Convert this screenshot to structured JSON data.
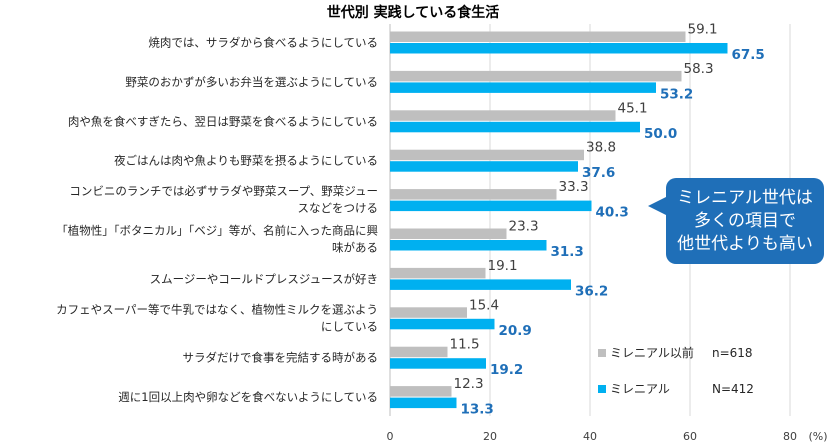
{
  "chart_data": {
    "type": "bar",
    "orientation": "horizontal",
    "title": "世代別 実践している食生活",
    "categories": [
      [
        "焼肉では、サラダから食べるようにしている"
      ],
      [
        "野菜のおかずが多いお弁当を選ぶようにしている"
      ],
      [
        "肉や魚を食べすぎたら、翌日は野菜を食べるようにしている"
      ],
      [
        "夜ごはんは肉や魚よりも野菜を摂るようにしている"
      ],
      [
        "コンビニのランチでは必ずサラダや野菜スープ、野菜ジュー",
        "スなどをつける"
      ],
      [
        "「植物性」「ボタニカル」「ベジ」等が、名前に入った商品に興",
        "味がある"
      ],
      [
        "スムージーやコールドプレスジュースが好き"
      ],
      [
        "カフェやスーパー等で牛乳ではなく、植物性ミルクを選ぶよう",
        "にしている"
      ],
      [
        "サラダだけで食事を完結する時がある"
      ],
      [
        "週に1回以上肉や卵などを食べないようにしている"
      ]
    ],
    "series": [
      {
        "name": "ミレニアル以前",
        "n": "n=618",
        "color": "#bfbfbf",
        "values": [
          59.1,
          58.3,
          45.1,
          38.8,
          33.3,
          23.3,
          19.1,
          15.4,
          11.5,
          12.3
        ]
      },
      {
        "name": "ミレニアル",
        "n": "N=412",
        "color": "#00b0f0",
        "values": [
          67.5,
          53.2,
          50.0,
          37.6,
          40.3,
          31.3,
          36.2,
          20.9,
          19.2,
          13.3
        ]
      }
    ],
    "xlim": [
      0,
      80
    ],
    "xticks": [
      "0",
      "20",
      "40",
      "60",
      "80"
    ],
    "unit_label": "(%)",
    "grid": true,
    "legend_position": "bottom-right"
  },
  "callout": {
    "lines": [
      "ミレニアル世代は",
      "多くの項目で",
      "他世代よりも高い"
    ]
  }
}
